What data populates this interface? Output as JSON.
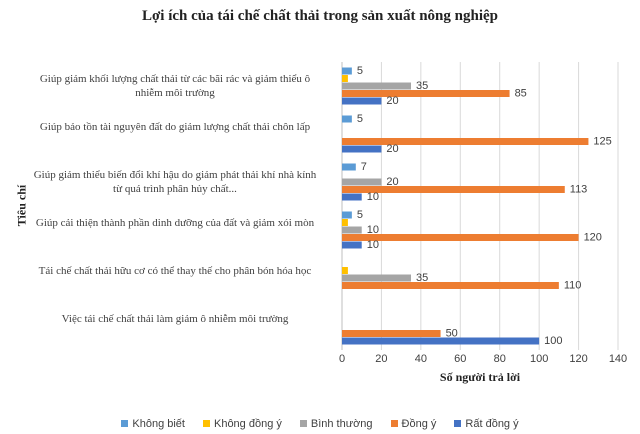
{
  "chart_data": {
    "type": "bar",
    "orientation": "horizontal",
    "title": "Lợi ích của tái chế chất thải trong sản xuất nông nghiệp",
    "x_label": "Số người trả lời",
    "y_label": "Tiêu chí",
    "categories": [
      "Giúp giảm khối lượng chất thải từ các bãi rác và giảm thiểu ô nhiễm môi trường",
      "Giúp bảo tồn tài nguyên đất do giảm lượng chất thải chôn lấp",
      "Giúp giảm thiểu biến đổi khí hậu do giảm phát thải khí nhà kính từ quá trình phân hủy chất...",
      "Giúp cải thiện thành phần dinh dưỡng của đất và giảm xói mòn",
      "Tái chế chất thải hữu cơ có thể thay thế cho phân bón hóa học",
      "Việc tái chế chất thải làm giảm ô nhiễm môi trường"
    ],
    "series": [
      {
        "name": "Không biết",
        "color": "#5b9bd5",
        "values": [
          5,
          5,
          7,
          5,
          0,
          0
        ],
        "value_labels": [
          "5",
          "5",
          "7",
          "5",
          null,
          null
        ]
      },
      {
        "name": "Không đồng ý",
        "color": "#ffc000",
        "values": [
          3,
          0,
          0,
          3,
          3,
          0
        ],
        "value_labels": [
          null,
          null,
          null,
          null,
          null,
          null
        ]
      },
      {
        "name": "Bình thường",
        "color": "#a5a5a5",
        "values": [
          35,
          0,
          20,
          10,
          35,
          0
        ],
        "value_labels": [
          "35",
          null,
          "20",
          "10",
          "35",
          null
        ]
      },
      {
        "name": "Đồng ý",
        "color": "#ed7d31",
        "values": [
          85,
          125,
          113,
          120,
          110,
          50
        ],
        "value_labels": [
          "85",
          "125",
          "113",
          "120",
          "110",
          "50"
        ]
      },
      {
        "name": "Rất đồng ý",
        "color": "#4472c4",
        "values": [
          20,
          20,
          10,
          10,
          0,
          100
        ],
        "value_labels": [
          "20",
          "20",
          "10",
          "10",
          null,
          "100"
        ]
      }
    ],
    "xlim": [
      0,
      140
    ],
    "xticks": [
      0,
      20,
      40,
      60,
      80,
      100,
      120,
      140
    ],
    "grid": true,
    "legend": "bottom"
  }
}
